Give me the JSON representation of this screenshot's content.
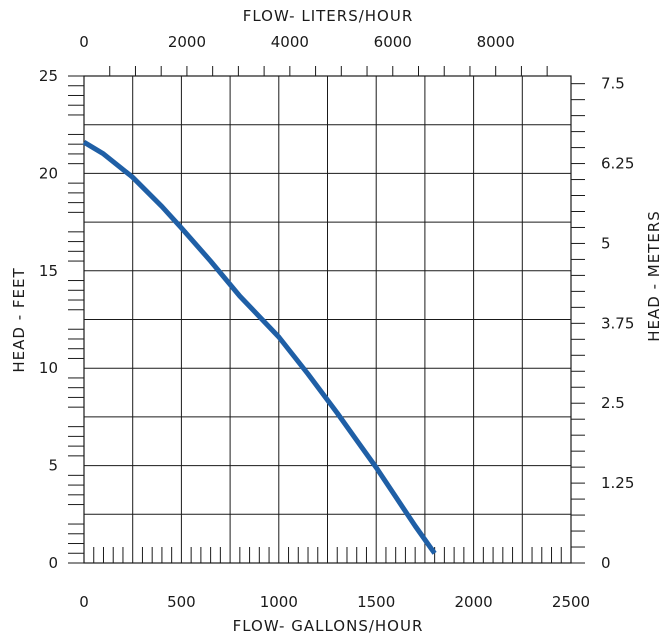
{
  "chart_data": {
    "type": "line",
    "title": "",
    "xlabel": "FLOW- GALLONS/HOUR",
    "ylabel": "HEAD - FEET",
    "x2label": "FLOW- LITERS/HOUR",
    "y2label": "HEAD - METERS",
    "xlim": [
      0,
      2500
    ],
    "ylim": [
      0,
      25
    ],
    "x2lim": [
      0,
      9463.5
    ],
    "y2lim": [
      0,
      7.62
    ],
    "x_ticks": [
      "0",
      "500",
      "1000",
      "1500",
      "2000",
      "2500"
    ],
    "y_ticks": [
      "0",
      "5",
      "10",
      "15",
      "20",
      "25"
    ],
    "x2_ticks": [
      "0",
      "2000",
      "4000",
      "6000",
      "8000"
    ],
    "y2_ticks": [
      "0",
      "1.25",
      "2.5",
      "3.75",
      "5",
      "6.25",
      "7.5"
    ],
    "grid": true,
    "line_color": "#1f5fa6",
    "series": [
      {
        "name": "",
        "x": [
          0,
          100,
          250,
          400,
          500,
          650,
          800,
          1000,
          1150,
          1300,
          1400,
          1500,
          1600,
          1700,
          1800
        ],
        "y": [
          21.6,
          21.0,
          19.8,
          18.3,
          17.2,
          15.5,
          13.7,
          11.6,
          9.7,
          7.7,
          6.3,
          4.9,
          3.4,
          1.9,
          0.5
        ]
      }
    ]
  }
}
